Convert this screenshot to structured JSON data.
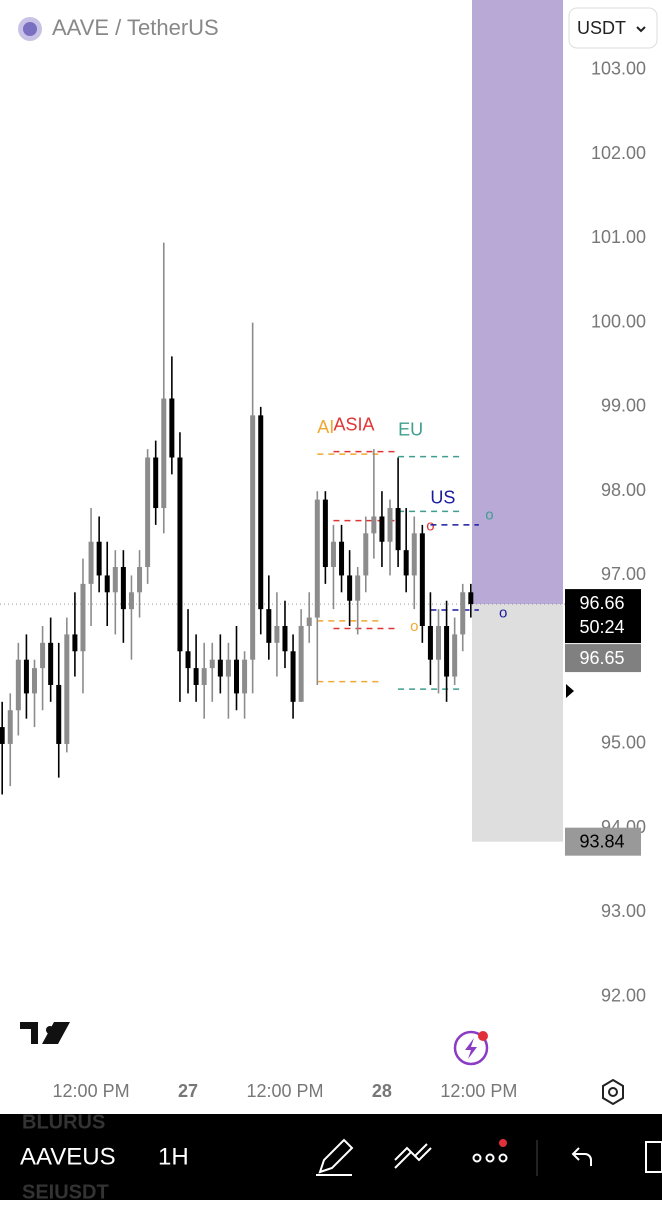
{
  "header": {
    "title": "AAVE / TetherUS",
    "currency": "USDT"
  },
  "toolbar": {
    "symbol": "AAVEUS",
    "interval": "1H",
    "prev_symbol": "BLURUS",
    "next_symbol": "SEIUSDT"
  },
  "chart_data": {
    "type": "candlestick",
    "x": [
      -23,
      -22,
      -21,
      -20,
      -19,
      -18,
      -17,
      -16,
      -15,
      -14,
      -13,
      -12,
      -11,
      -10,
      -9,
      -8,
      -7,
      -6,
      -5,
      -4,
      -3,
      -2,
      -1,
      0,
      1,
      2,
      3,
      4,
      5,
      6,
      7,
      8,
      9,
      10,
      11,
      12,
      13,
      14,
      15,
      16,
      17,
      18,
      19,
      20,
      21,
      22,
      23,
      24,
      25,
      26,
      27,
      28,
      29,
      30,
      31,
      32,
      33,
      34,
      35
    ],
    "open": [
      95.2,
      95.0,
      95.4,
      96.0,
      95.6,
      95.9,
      96.2,
      95.7,
      95.0,
      96.3,
      96.1,
      96.9,
      97.4,
      97.0,
      96.8,
      97.1,
      96.6,
      96.8,
      97.1,
      98.4,
      97.8,
      99.1,
      98.4,
      96.1,
      95.9,
      95.7,
      95.9,
      96.0,
      95.8,
      96.0,
      95.6,
      96.0,
      98.9,
      96.6,
      96.2,
      96.4,
      96.1,
      95.5,
      96.4,
      96.5,
      97.9,
      97.1,
      97.4,
      97.0,
      96.7,
      97.0,
      97.5,
      97.7,
      97.4,
      97.8,
      97.3,
      97.0,
      97.5,
      96.4,
      96.0,
      96.4,
      95.8,
      96.3,
      96.8
    ],
    "high": [
      95.5,
      95.6,
      96.2,
      96.3,
      96.0,
      96.4,
      96.5,
      96.2,
      96.5,
      96.8,
      97.2,
      97.8,
      97.7,
      97.4,
      97.3,
      97.3,
      97.0,
      97.3,
      98.5,
      98.6,
      100.95,
      99.6,
      98.7,
      96.6,
      96.3,
      96.2,
      96.2,
      96.3,
      96.2,
      96.4,
      96.1,
      100.0,
      99.0,
      97.0,
      96.8,
      96.7,
      96.3,
      96.6,
      96.8,
      98.0,
      98.0,
      97.6,
      97.6,
      97.3,
      97.1,
      97.7,
      98.5,
      98.0,
      97.9,
      98.4,
      97.8,
      97.7,
      97.6,
      96.8,
      96.6,
      96.7,
      96.5,
      96.9,
      96.9
    ],
    "low": [
      94.4,
      94.5,
      95.1,
      95.3,
      95.2,
      95.4,
      95.5,
      94.6,
      94.9,
      95.8,
      95.6,
      96.4,
      96.8,
      96.4,
      96.3,
      96.2,
      96.0,
      96.5,
      96.9,
      97.6,
      97.5,
      98.2,
      95.5,
      95.6,
      95.5,
      95.3,
      95.5,
      95.6,
      95.3,
      95.4,
      95.3,
      95.6,
      96.3,
      96.0,
      95.8,
      95.9,
      95.3,
      95.5,
      96.2,
      95.7,
      96.9,
      96.6,
      96.8,
      96.4,
      96.3,
      96.8,
      97.2,
      97.1,
      97.0,
      97.1,
      96.8,
      96.6,
      96.2,
      95.7,
      95.6,
      95.5,
      95.7,
      96.1,
      96.5
    ],
    "close": [
      95.0,
      95.4,
      96.0,
      95.6,
      95.9,
      96.2,
      95.7,
      95.0,
      96.3,
      96.1,
      96.9,
      97.4,
      97.0,
      96.8,
      97.1,
      96.6,
      96.8,
      97.1,
      98.4,
      97.8,
      99.1,
      98.4,
      96.1,
      95.9,
      95.7,
      95.9,
      96.0,
      95.8,
      96.0,
      95.6,
      96.0,
      98.9,
      96.6,
      96.2,
      96.4,
      96.1,
      95.5,
      96.4,
      96.5,
      97.9,
      97.1,
      97.4,
      97.0,
      96.7,
      97.0,
      97.5,
      97.7,
      97.4,
      97.8,
      97.3,
      97.0,
      97.5,
      96.4,
      96.0,
      96.4,
      95.8,
      96.3,
      96.8,
      96.66
    ],
    "up_color": "#8c8c8c",
    "down_color": "#000000",
    "xlim": [
      -23.27,
      46.78
    ],
    "xticks": [
      {
        "value": -12,
        "label": "12:00 PM"
      },
      {
        "value": 0,
        "label": "27"
      },
      {
        "value": 12,
        "label": "12:00 PM"
      },
      {
        "value": 24,
        "label": "28"
      },
      {
        "value": 36,
        "label": "12:00 PM"
      }
    ],
    "ylim": [
      91.13,
      103.83
    ],
    "yticks": [
      {
        "value": 92,
        "label": "92.00"
      },
      {
        "value": 93,
        "label": "93.00"
      },
      {
        "value": 94,
        "label": "94.00"
      },
      {
        "value": 95,
        "label": "95.00"
      },
      {
        "value": 97,
        "label": "97.00"
      },
      {
        "value": 98,
        "label": "98.00"
      },
      {
        "value": 99,
        "label": "99.00"
      },
      {
        "value": 100,
        "label": "100.00"
      },
      {
        "value": 101,
        "label": "101.00"
      },
      {
        "value": 102,
        "label": "102.00"
      },
      {
        "value": 103,
        "label": "103.00"
      }
    ],
    "sessions": [
      {
        "name": "AI",
        "color": "#f0a830",
        "start": 16,
        "end": 24,
        "levels": [
          98.44,
          96.46,
          95.74
        ],
        "marker": "o",
        "marker_x": 28,
        "marker_value": 96.39
      },
      {
        "name": "ASIA",
        "color": "#e03535",
        "start": 18,
        "end": 26,
        "levels": [
          98.47,
          97.65,
          96.37
        ],
        "marker": "o",
        "marker_x": 30,
        "marker_value": 97.58
      },
      {
        "name": "EU",
        "color": "#3f9e8e",
        "start": 26,
        "end": 34,
        "levels": [
          98.41,
          97.76,
          95.65
        ],
        "marker": "o",
        "marker_x": 37.3,
        "marker_value": 97.71
      },
      {
        "name": "US",
        "color": "#1a1a9e",
        "start": 30,
        "end": 36,
        "levels": [
          97.6,
          96.59
        ],
        "marker": "o",
        "marker_x": 39,
        "marker_value": 96.55
      }
    ],
    "position_color": "#b8a9d6",
    "stop_color": "#dedede",
    "current_price": 96.66,
    "countdown": "50:24",
    "mark_price": 96.65,
    "stop_price": 93.84
  }
}
